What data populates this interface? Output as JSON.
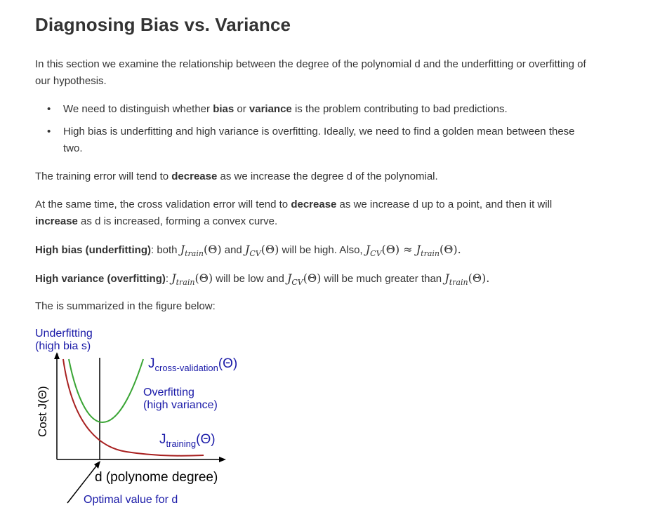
{
  "heading": "Diagnosing Bias vs. Variance",
  "intro": "In this section we examine the relationship between the degree of the polynomial d and the underfitting or overfitting of our hypothesis.",
  "bullets": {
    "b1_pre": "We need to distinguish whether ",
    "b1_bias": "bias",
    "b1_or": " or ",
    "b1_variance": "variance",
    "b1_post": " is the problem contributing to bad predictions.",
    "b2": "High bias is underfitting and high variance is overfitting. Ideally, we need to find a golden mean between these two."
  },
  "p_training": {
    "pre": "The training error will tend to ",
    "bold": "decrease",
    "post": " as we increase the degree d of the polynomial."
  },
  "p_cv": {
    "pre": "At the same time, the cross validation error will tend to ",
    "bold1": "decrease",
    "mid": " as we increase d up to a point, and then it will ",
    "bold2": "increase",
    "post": " as d is increased, forming a convex curve."
  },
  "p_bias": {
    "label": "High bias (underfitting)",
    "t1": ": both ",
    "t2": " and ",
    "t3": " will be high. Also, "
  },
  "p_variance": {
    "label": "High variance (overfitting)",
    "t1": ": ",
    "t2": " will be low and ",
    "t3": " will be much greater than "
  },
  "math": {
    "J": "J",
    "train": "train",
    "cv": "CV",
    "theta": "(Θ)",
    "approx": "≈",
    "period": "."
  },
  "summary": "The is summarized in the figure below:",
  "figure": {
    "underfitting_line1": "Underfitting",
    "underfitting_line2": "(high bia s)",
    "y_axis_label": "Cost J(Θ)",
    "cv_curve_label_J": "J",
    "cv_curve_label_sub": "cross-validation",
    "cv_curve_label_theta": "(Θ)",
    "overfitting_line1": "Overfitting",
    "overfitting_line2": "(high variance)",
    "train_curve_label_J": "J",
    "train_curve_label_sub": "training",
    "train_curve_label_theta": "(Θ)",
    "x_axis_label": "d (polynome degree)",
    "optimal_label": "Optimal value for d",
    "colors": {
      "label_blue": "#1a1aa8",
      "cv_curve": "#3aa535",
      "train_curve": "#a82020",
      "axis": "#000000"
    }
  }
}
